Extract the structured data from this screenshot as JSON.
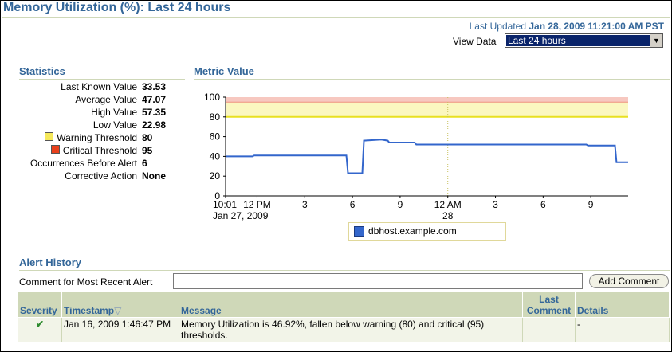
{
  "page": {
    "title": "Memory Utilization (%): Last 24 hours",
    "last_updated_label": "Last Updated",
    "last_updated_value": "Jan 28, 2009 11:21:00 AM PST",
    "view_data_label": "View Data",
    "view_data_selected": "Last 24 hours"
  },
  "statistics": {
    "heading": "Statistics",
    "rows": [
      {
        "label": "Last Known Value",
        "value": "33.53"
      },
      {
        "label": "Average Value",
        "value": "47.07"
      },
      {
        "label": "High Value",
        "value": "57.35"
      },
      {
        "label": "Low Value",
        "value": "22.98"
      },
      {
        "label": "Warning Threshold",
        "value": "80",
        "swatch": "#f5e85a"
      },
      {
        "label": "Critical Threshold",
        "value": "95",
        "swatch": "#e8401c"
      },
      {
        "label": "Occurrences Before Alert",
        "value": "6"
      },
      {
        "label": "Corrective Action",
        "value": "None"
      }
    ]
  },
  "metric": {
    "heading": "Metric Value"
  },
  "chart_data": {
    "type": "line",
    "ylim": [
      0,
      100
    ],
    "y_ticks": [
      0,
      20,
      40,
      60,
      80,
      100
    ],
    "x_ticks": [
      {
        "label": "10:01",
        "sub": "Jan 27, 2009",
        "hours": 0
      },
      {
        "label": "12 PM",
        "sub": "",
        "hours": 1.98
      },
      {
        "label": "3",
        "sub": "",
        "hours": 4.98
      },
      {
        "label": "6",
        "sub": "",
        "hours": 7.98
      },
      {
        "label": "9",
        "sub": "",
        "hours": 10.98
      },
      {
        "label": "12 AM",
        "sub": "28",
        "hours": 13.98
      },
      {
        "label": "3",
        "sub": "",
        "hours": 16.98
      },
      {
        "label": "6",
        "sub": "",
        "hours": 19.98
      },
      {
        "label": "9",
        "sub": "",
        "hours": 22.98
      }
    ],
    "x_max_hours": 25.33,
    "warning_threshold": 80,
    "critical_threshold": 95,
    "series": [
      {
        "name": "dbhost.example.com",
        "color": "#3366cc",
        "points": [
          [
            0,
            40
          ],
          [
            1.7,
            40
          ],
          [
            1.8,
            41
          ],
          [
            7.3,
            41
          ],
          [
            7.6,
            41
          ],
          [
            7.7,
            23
          ],
          [
            8.5,
            23
          ],
          [
            8.6,
            23
          ],
          [
            8.7,
            56
          ],
          [
            9.8,
            57
          ],
          [
            10.2,
            56
          ],
          [
            10.3,
            54
          ],
          [
            11.9,
            54
          ],
          [
            12.0,
            52
          ],
          [
            22.7,
            52
          ],
          [
            22.8,
            51
          ],
          [
            24.3,
            51
          ],
          [
            24.5,
            51
          ],
          [
            24.6,
            34
          ],
          [
            25.33,
            34
          ]
        ]
      }
    ]
  },
  "legend": {
    "label": "dbhost.example.com",
    "color": "#3366cc"
  },
  "alert_history": {
    "heading": "Alert History",
    "comment_label": "Comment for Most Recent Alert",
    "comment_value": "",
    "add_comment_label": "Add Comment",
    "columns": {
      "severity": "Severity",
      "timestamp": "Timestamp",
      "sort_icon": "▽",
      "message": "Message",
      "last_comment_1": "Last",
      "last_comment_2": "Comment",
      "details": "Details"
    },
    "rows": [
      {
        "severity_icon": "check-icon",
        "timestamp": "Jan 16, 2009 1:46:47 PM",
        "message": "Memory Utilization is 46.92%, fallen below warning (80) and critical (95) thresholds.",
        "last_comment": "",
        "details": "-"
      }
    ]
  }
}
